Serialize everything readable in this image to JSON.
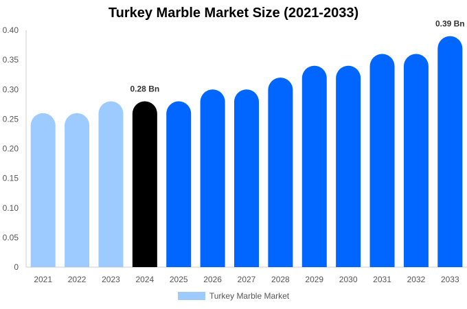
{
  "chart_data": {
    "type": "bar",
    "title": "Turkey Marble Market Size (2021-2033)",
    "categories": [
      "2021",
      "2022",
      "2023",
      "2024",
      "2025",
      "2026",
      "2027",
      "2028",
      "2029",
      "2030",
      "2031",
      "2032",
      "2033"
    ],
    "series": [
      {
        "name": "Turkey Marble Market",
        "values": [
          0.26,
          0.26,
          0.28,
          0.28,
          0.28,
          0.3,
          0.3,
          0.32,
          0.34,
          0.34,
          0.36,
          0.36,
          0.39
        ]
      }
    ],
    "bar_colors": [
      "#9ecbff",
      "#9ecbff",
      "#9ecbff",
      "#000000",
      "#0066ff",
      "#0066ff",
      "#0066ff",
      "#0066ff",
      "#0066ff",
      "#0066ff",
      "#0066ff",
      "#0066ff",
      "#0066ff"
    ],
    "data_labels": [
      {
        "category": "2024",
        "text": "0.28 Bn"
      },
      {
        "category": "2033",
        "text": "0.39 Bn"
      }
    ],
    "yticks": [
      "0",
      "0.05",
      "0.10",
      "0.15",
      "0.20",
      "0.25",
      "0.30",
      "0.35",
      "0.40"
    ],
    "ylim": [
      0,
      0.4
    ],
    "xlabel": "",
    "ylabel": "",
    "grid": false,
    "legend_position": "bottom-center",
    "legend_color": "#9ecbff"
  }
}
